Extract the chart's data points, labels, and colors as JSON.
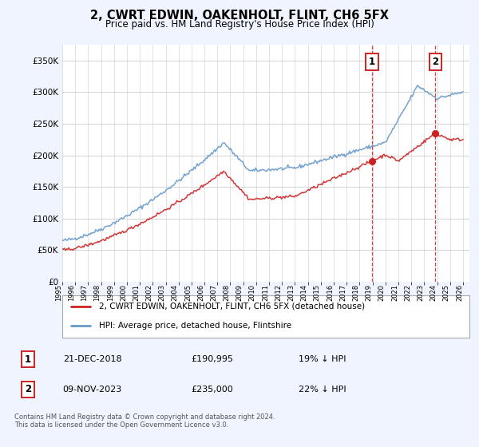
{
  "title": "2, CWRT EDWIN, OAKENHOLT, FLINT, CH6 5FX",
  "subtitle": "Price paid vs. HM Land Registry's House Price Index (HPI)",
  "ylim": [
    0,
    375000
  ],
  "yticks": [
    0,
    50000,
    100000,
    150000,
    200000,
    250000,
    300000,
    350000
  ],
  "ytick_labels": [
    "£0",
    "£50K",
    "£100K",
    "£150K",
    "£200K",
    "£250K",
    "£300K",
    "£350K"
  ],
  "hpi_color": "#6699cc",
  "price_color": "#cc2222",
  "marker1_date": 2018.97,
  "marker1_price": 190995,
  "marker1_label": "1",
  "marker1_date_str": "21-DEC-2018",
  "marker1_price_str": "£190,995",
  "marker1_hpi_str": "19% ↓ HPI",
  "marker2_date": 2023.87,
  "marker2_price": 235000,
  "marker2_label": "2",
  "marker2_date_str": "09-NOV-2023",
  "marker2_price_str": "£235,000",
  "marker2_hpi_str": "22% ↓ HPI",
  "legend_line1": "2, CWRT EDWIN, OAKENHOLT, FLINT, CH6 5FX (detached house)",
  "legend_line2": "HPI: Average price, detached house, Flintshire",
  "footer": "Contains HM Land Registry data © Crown copyright and database right 2024.\nThis data is licensed under the Open Government Licence v3.0.",
  "background_color": "#f0f4ff",
  "plot_bg_color": "#ffffff",
  "grid_color": "#cccccc"
}
